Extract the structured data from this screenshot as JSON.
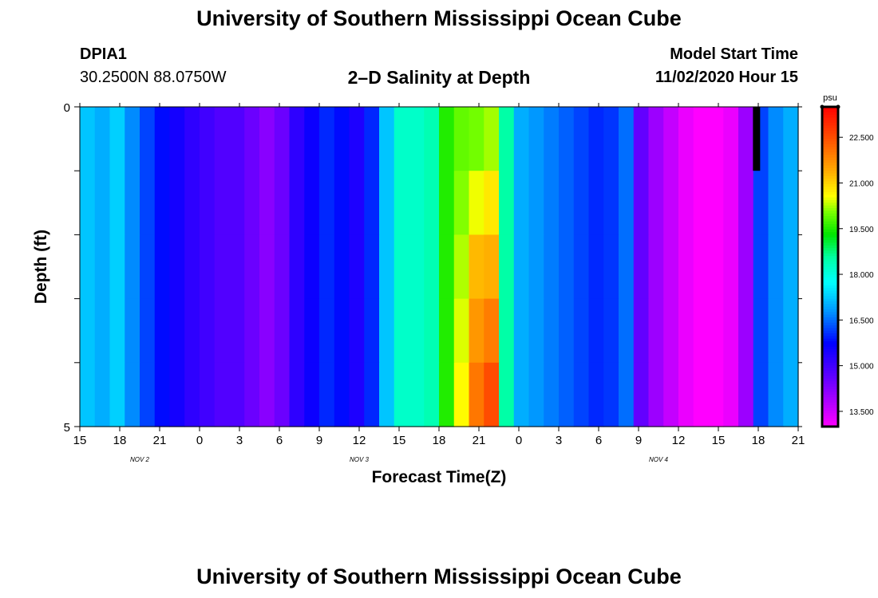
{
  "header": {
    "title": "University of Southern Mississippi Ocean Cube",
    "footer_title": "University of Southern Mississippi Ocean Cube",
    "station_id": "DPIA1",
    "coordinates": "30.2500N 88.0750W",
    "start_label": "Model Start Time",
    "start_value": "11/02/2020 Hour 15"
  },
  "chart_data": {
    "type": "heatmap",
    "title": "2–D Salinity at Depth",
    "xlabel": "Forecast Time(Z)",
    "ylabel": "Depth (ft)",
    "x_hours": [
      0,
      54
    ],
    "ylim": [
      0,
      5
    ],
    "y_ticks": [
      "0",
      "5"
    ],
    "x_tick_labels": [
      "15",
      "18",
      "21",
      "0",
      "3",
      "6",
      "9",
      "12",
      "15",
      "18",
      "21",
      "0",
      "3",
      "6",
      "9",
      "12",
      "15",
      "18",
      "21"
    ],
    "date_labels": [
      {
        "text": "NOV  2",
        "hour": 4.5
      },
      {
        "text": "NOV  3",
        "hour": 21
      },
      {
        "text": "NOV  4",
        "hour": 43.5
      }
    ],
    "colorbar": {
      "unit": "psu",
      "min": 13.0,
      "max": 23.5,
      "ticks": [
        "22.500",
        "21.000",
        "19.500",
        "18.000",
        "16.500",
        "15.000",
        "13.500"
      ]
    },
    "depth_rows": [
      0.5,
      1.5,
      2.5,
      3.5,
      4.5
    ],
    "salinity_surface": [
      17.2,
      17.0,
      17.3,
      16.7,
      16.2,
      15.8,
      15.5,
      15.2,
      15.0,
      14.8,
      14.8,
      14.5,
      14.2,
      14.5,
      15.2,
      15.6,
      16.0,
      15.8,
      15.4,
      16.0,
      17.2,
      18.2,
      18.2,
      18.4,
      19.5,
      19.9,
      20.0,
      20.2,
      18.5,
      17.0,
      16.8,
      16.6,
      16.4,
      16.2,
      16.0,
      16.1,
      16.5,
      14.6,
      14.0,
      13.6,
      13.2,
      13.0,
      13.0,
      13.2,
      14.0,
      16.2,
      16.7,
      17.0
    ],
    "salinity_bottom": [
      17.2,
      17.0,
      17.3,
      16.7,
      16.2,
      15.8,
      15.5,
      15.2,
      15.0,
      14.8,
      14.8,
      14.5,
      14.2,
      14.5,
      15.2,
      15.6,
      16.0,
      15.8,
      15.4,
      16.0,
      17.2,
      18.2,
      18.2,
      18.4,
      19.5,
      20.6,
      22.0,
      22.5,
      18.5,
      17.0,
      16.8,
      16.6,
      16.4,
      16.2,
      16.0,
      16.1,
      16.5,
      14.6,
      14.0,
      13.6,
      13.2,
      13.0,
      13.0,
      13.2,
      14.0,
      16.2,
      16.7,
      17.0
    ],
    "front_shift_hours": [
      0,
      0.8,
      1.3,
      1.4,
      1.5
    ]
  }
}
